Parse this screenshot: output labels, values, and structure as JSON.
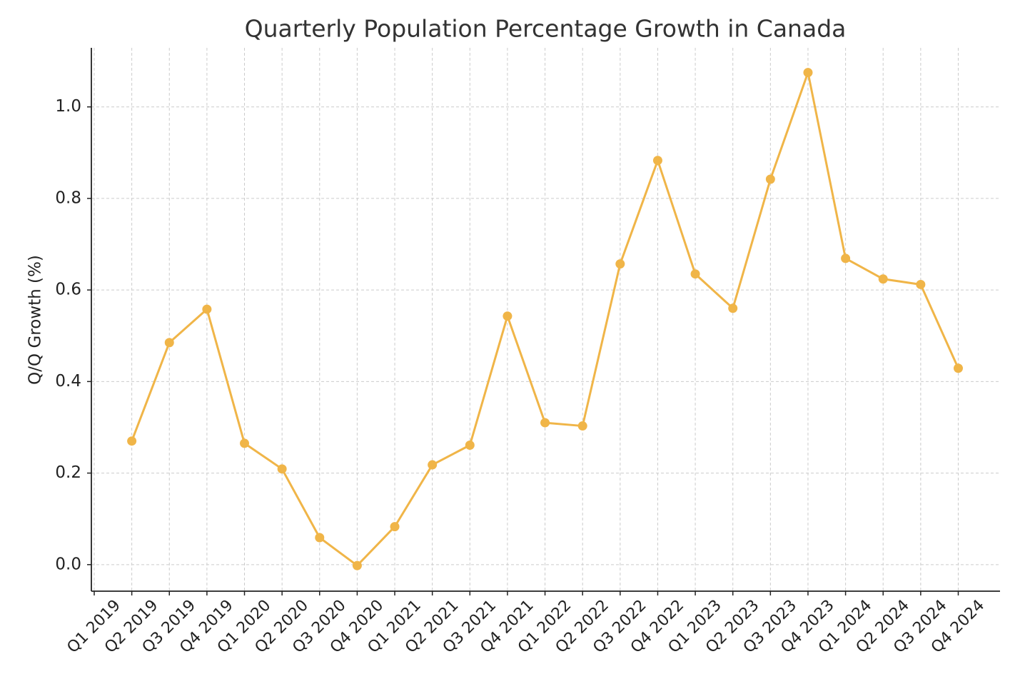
{
  "chart_data": {
    "type": "line",
    "title": "Quarterly Population Percentage Growth in Canada",
    "y_label": "Q/Q Growth (%)",
    "categories": [
      "Q1 2019",
      "Q2 2019",
      "Q3 2019",
      "Q4 2019",
      "Q1 2020",
      "Q2 2020",
      "Q3 2020",
      "Q4 2020",
      "Q1 2021",
      "Q2 2021",
      "Q3 2021",
      "Q4 2021",
      "Q1 2022",
      "Q2 2022",
      "Q3 2022",
      "Q4 2022",
      "Q1 2023",
      "Q2 2023",
      "Q3 2023",
      "Q4 2023",
      "Q1 2024",
      "Q2 2024",
      "Q3 2024",
      "Q4 2024"
    ],
    "series": [
      {
        "color": "#f0b548",
        "values": [
          null,
          0.27,
          0.485,
          0.558,
          0.265,
          0.209,
          0.059,
          -0.002,
          0.083,
          0.218,
          0.261,
          0.543,
          0.31,
          0.303,
          0.657,
          0.883,
          0.635,
          0.56,
          0.842,
          1.075,
          0.669,
          0.624,
          0.612,
          0.429
        ]
      }
    ],
    "ylim": [
      -0.058,
      1.129
    ],
    "yticks": [
      {
        "value": 0,
        "label": "0.0"
      },
      0.2,
      0.4,
      0.6,
      0.8,
      {
        "value": 1,
        "label": "1.0"
      }
    ],
    "grid": true
  }
}
